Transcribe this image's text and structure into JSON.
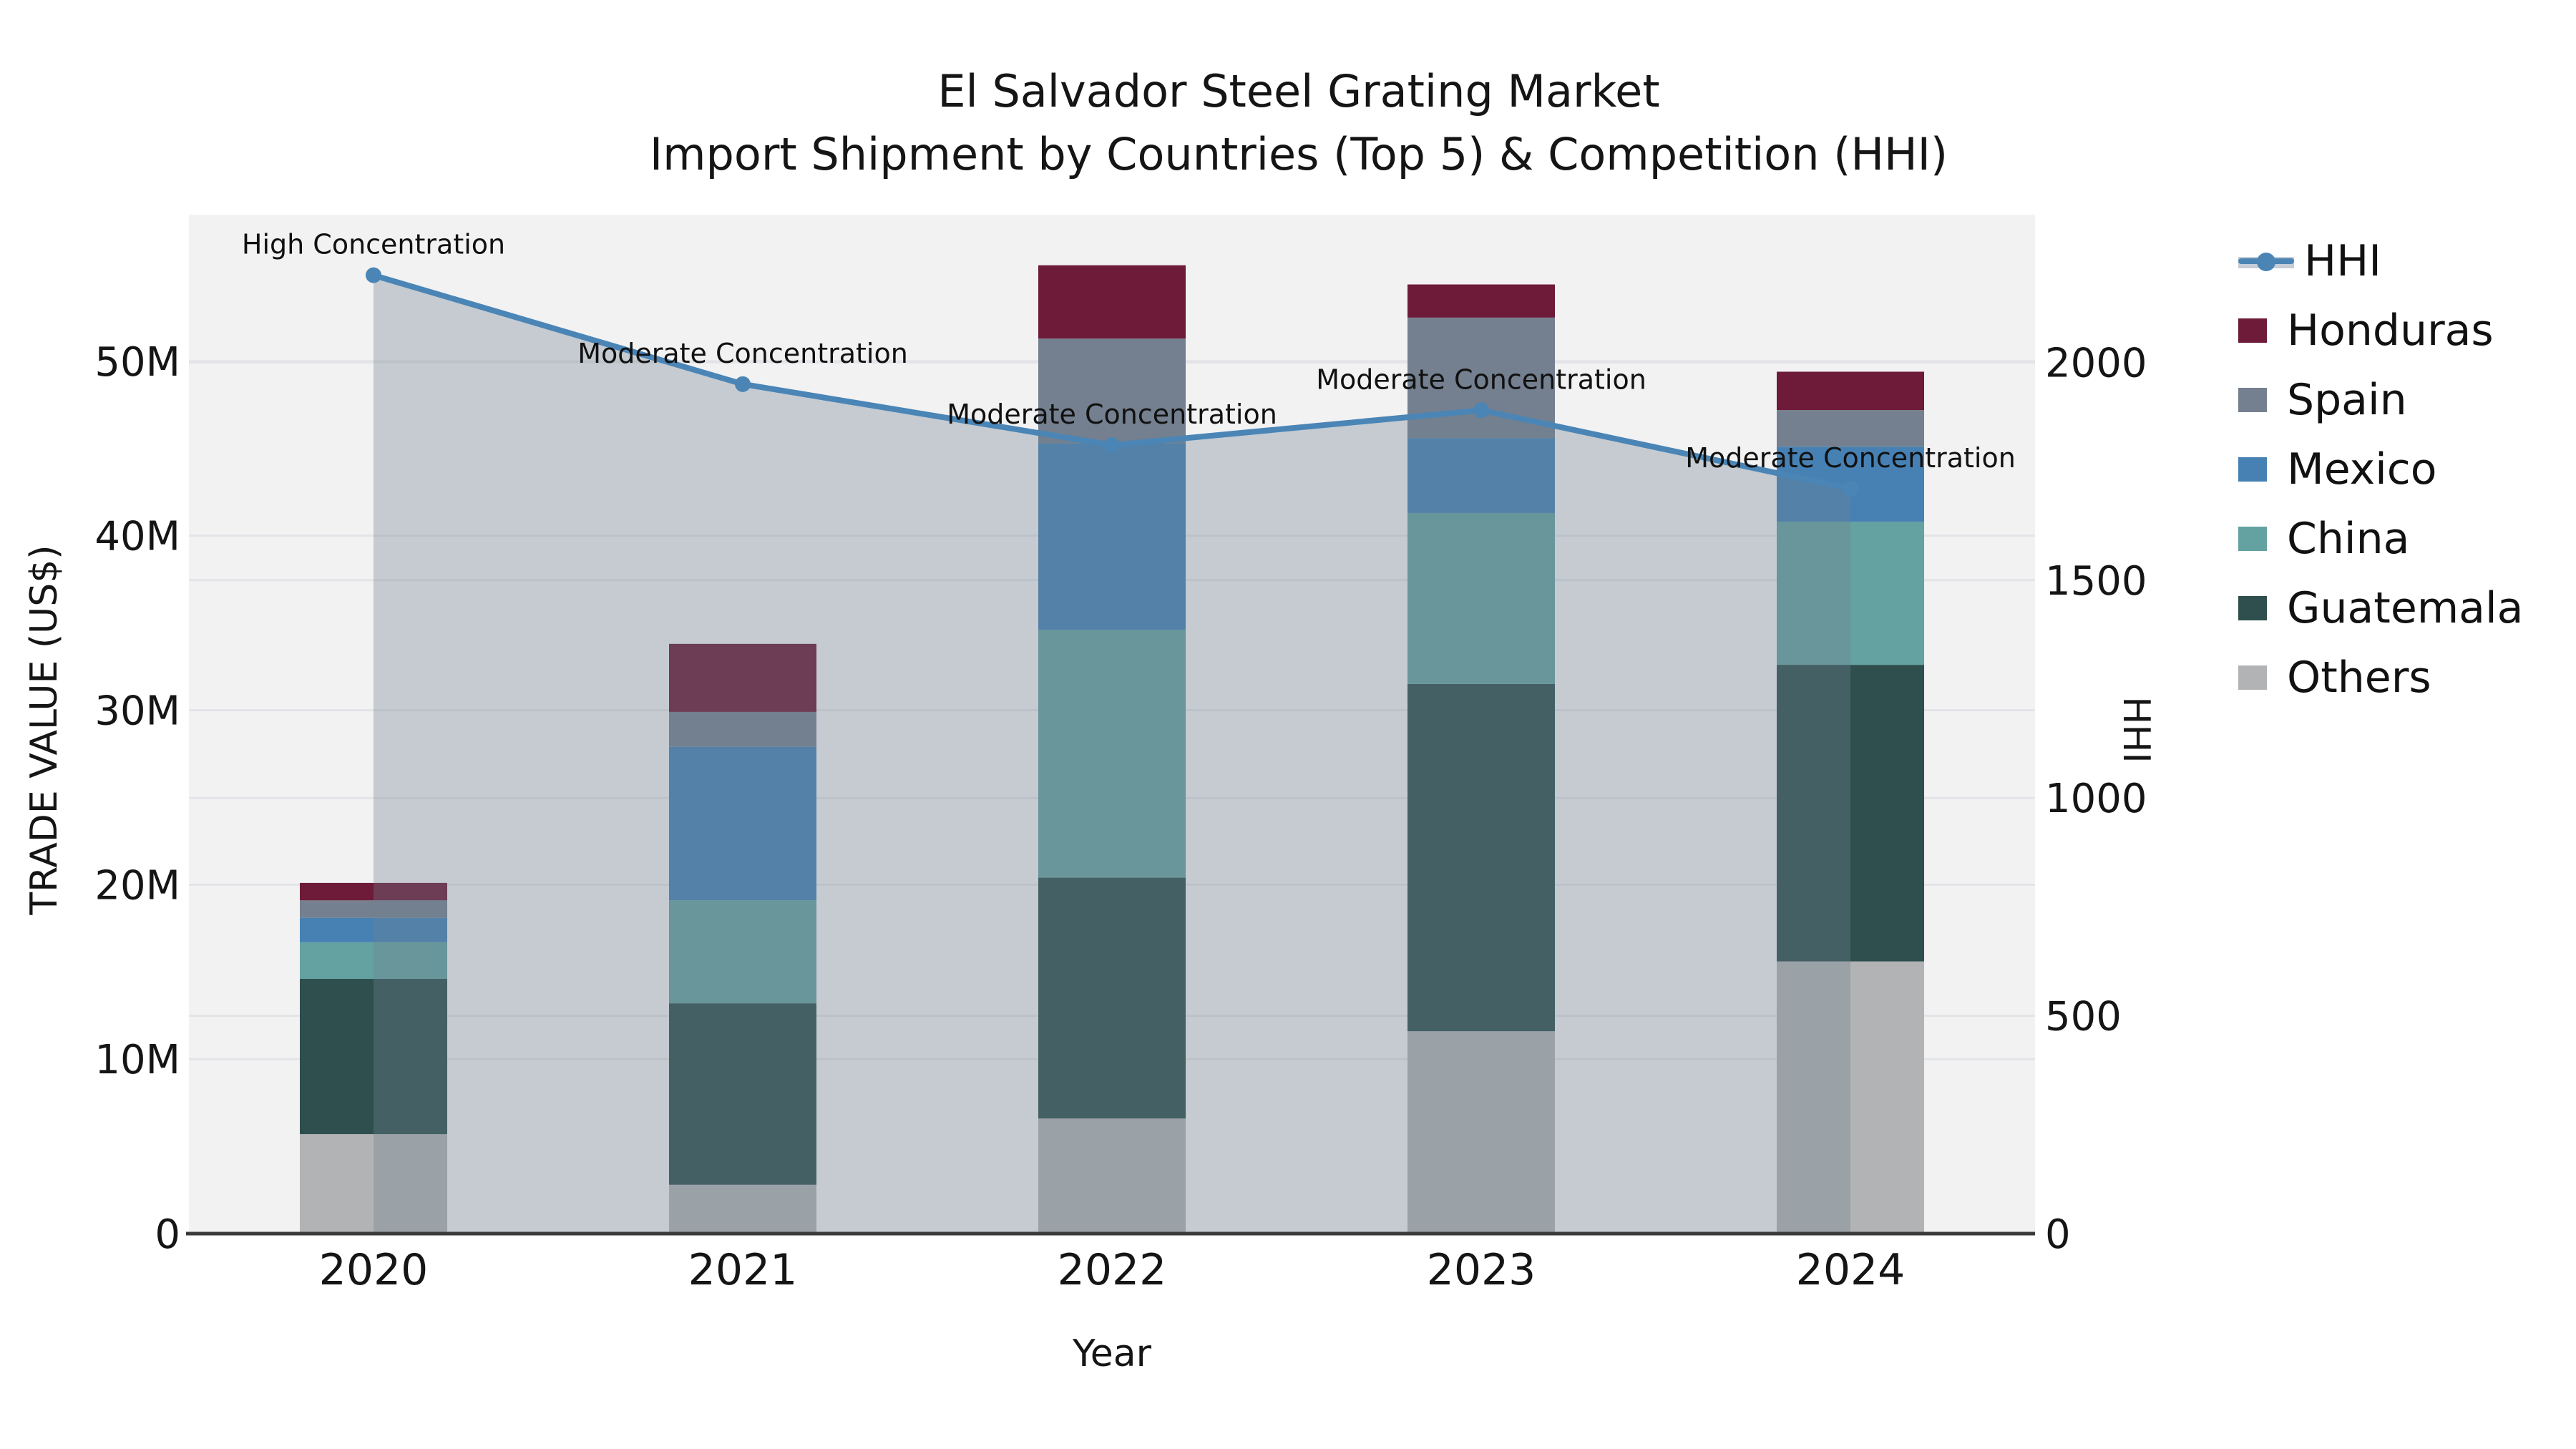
{
  "title": {
    "line1": "El Salvador Steel Grating Market",
    "line2": "Import Shipment by Countries (Top 5) & Competition (HHI)"
  },
  "chart_data": {
    "type": "stacked-bar + line (dual axis)",
    "categories": [
      "2020",
      "2021",
      "2022",
      "2023",
      "2024"
    ],
    "x_label": "Year",
    "y_left": {
      "label": "TRADE VALUE (US$)",
      "unit": "million US$",
      "tick_labels": [
        "0",
        "10M",
        "20M",
        "30M",
        "40M",
        "50M"
      ],
      "tick_values": [
        0,
        10,
        20,
        30,
        40,
        50
      ],
      "max": 58.4
    },
    "y_right": {
      "label": "HHI",
      "tick_labels": [
        "0",
        "500",
        "1000",
        "1500",
        "2000"
      ],
      "tick_values": [
        0,
        500,
        1000,
        1500,
        2000
      ],
      "max": 2339
    },
    "bar_series_bottom_to_top": [
      {
        "name": "Others",
        "color": "#b1b3b5",
        "values": [
          5.7,
          2.8,
          6.6,
          11.6,
          15.6
        ]
      },
      {
        "name": "Guatemala",
        "color": "#2e4f4e",
        "values": [
          8.9,
          10.4,
          13.8,
          19.9,
          17.0
        ]
      },
      {
        "name": "China",
        "color": "#64a1a1",
        "values": [
          2.1,
          5.9,
          14.2,
          9.8,
          8.2
        ]
      },
      {
        "name": "Mexico",
        "color": "#4781b4",
        "values": [
          1.4,
          8.8,
          10.7,
          4.3,
          4.3
        ]
      },
      {
        "name": "Spain",
        "color": "#74808f",
        "values": [
          1.0,
          2.0,
          6.0,
          6.9,
          2.1
        ]
      },
      {
        "name": "Honduras",
        "color": "#6d1b38",
        "values": [
          1.0,
          3.9,
          4.2,
          1.9,
          2.2
        ]
      }
    ],
    "bar_totals": [
      20.1,
      33.8,
      55.5,
      54.4,
      49.4
    ],
    "line_series": {
      "name": "HHI",
      "axis": "right",
      "color": "#4a85b6",
      "area_fill": "#708090",
      "area_opacity": 0.34,
      "values": [
        2200,
        1950,
        1810,
        1890,
        1710
      ]
    },
    "annotations": [
      {
        "category": "2020",
        "text": "High Concentration"
      },
      {
        "category": "2021",
        "text": "Moderate Concentration"
      },
      {
        "category": "2022",
        "text": "Moderate Concentration"
      },
      {
        "category": "2023",
        "text": "Moderate Concentration"
      },
      {
        "category": "2024",
        "text": "Moderate Concentration"
      }
    ],
    "legend_position": "right",
    "grid": true
  },
  "legend": {
    "items": [
      {
        "label": "HHI",
        "type": "line",
        "color": "#4a85b6"
      },
      {
        "label": "Honduras",
        "type": "swatch",
        "color": "#6d1b38"
      },
      {
        "label": "Spain",
        "type": "swatch",
        "color": "#74808f"
      },
      {
        "label": "Mexico",
        "type": "swatch",
        "color": "#4781b4"
      },
      {
        "label": "China",
        "type": "swatch",
        "color": "#64a1a1"
      },
      {
        "label": "Guatemala",
        "type": "swatch",
        "color": "#2e4f4e"
      },
      {
        "label": "Others",
        "type": "swatch",
        "color": "#b1b3b5"
      }
    ]
  },
  "colors": {
    "plot_background": "#f2f2f3",
    "gridline": "#e3e4e7",
    "axis_line": "#3a3a3a",
    "text": "#151515"
  }
}
